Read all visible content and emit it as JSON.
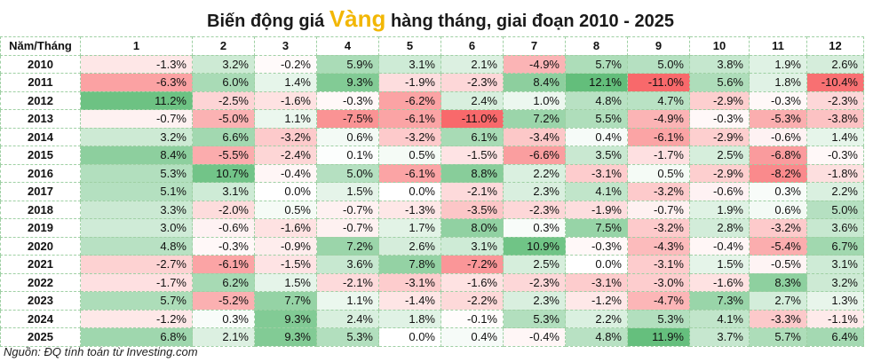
{
  "title": {
    "prefix": "Biến động giá ",
    "highlight": "Vàng",
    "suffix": " hàng tháng, giai đoạn 2010 - 2025"
  },
  "source": "Nguồn: ĐQ tính toán từ Investing.com",
  "colors": {
    "positive": "#63be7b",
    "negative": "#f8696b",
    "neutral": "#ffffff",
    "title_highlight": "#f2b705"
  },
  "chart_data": {
    "type": "heatmap",
    "corner_label": "Năm/Tháng",
    "columns": [
      "1",
      "2",
      "3",
      "4",
      "5",
      "6",
      "7",
      "8",
      "9",
      "10",
      "11",
      "12"
    ],
    "rows": [
      {
        "year": "2010",
        "values": [
          "-1.3%",
          "3.2%",
          "-0.2%",
          "5.9%",
          "3.1%",
          "2.1%",
          "-4.9%",
          "5.7%",
          "5.0%",
          "3.8%",
          "1.9%",
          "2.6%"
        ]
      },
      {
        "year": "2011",
        "values": [
          "-6.3%",
          "6.0%",
          "1.4%",
          "9.3%",
          "-1.9%",
          "-2.3%",
          "8.4%",
          "12.1%",
          "-11.0%",
          "5.6%",
          "1.8%",
          "-10.4%"
        ]
      },
      {
        "year": "2012",
        "values": [
          "11.2%",
          "-2.5%",
          "-1.6%",
          "-0.3%",
          "-6.2%",
          "2.4%",
          "1.0%",
          "4.8%",
          "4.7%",
          "-2.9%",
          "-0.3%",
          "-2.3%"
        ]
      },
      {
        "year": "2013",
        "values": [
          "-0.7%",
          "-5.0%",
          "1.1%",
          "-7.5%",
          "-6.1%",
          "-11.0%",
          "7.2%",
          "5.5%",
          "-4.9%",
          "-0.3%",
          "-5.3%",
          "-3.8%"
        ]
      },
      {
        "year": "2014",
        "values": [
          "3.2%",
          "6.6%",
          "-3.2%",
          "0.6%",
          "-3.2%",
          "6.1%",
          "-3.4%",
          "0.4%",
          "-6.1%",
          "-2.9%",
          "-0.6%",
          "1.4%"
        ]
      },
      {
        "year": "2015",
        "values": [
          "8.4%",
          "-5.5%",
          "-2.4%",
          "0.1%",
          "0.5%",
          "-1.5%",
          "-6.6%",
          "3.5%",
          "-1.7%",
          "2.5%",
          "-6.8%",
          "-0.3%"
        ]
      },
      {
        "year": "2016",
        "values": [
          "5.3%",
          "10.7%",
          "-0.4%",
          "5.0%",
          "-6.1%",
          "8.8%",
          "2.2%",
          "-3.1%",
          "0.5%",
          "-2.9%",
          "-8.2%",
          "-1.8%"
        ]
      },
      {
        "year": "2017",
        "values": [
          "5.1%",
          "3.1%",
          "0.0%",
          "1.5%",
          "0.0%",
          "-2.1%",
          "2.3%",
          "4.1%",
          "-3.2%",
          "-0.6%",
          "0.3%",
          "2.2%"
        ]
      },
      {
        "year": "2018",
        "values": [
          "3.3%",
          "-2.0%",
          "0.5%",
          "-0.7%",
          "-1.3%",
          "-3.5%",
          "-2.3%",
          "-1.9%",
          "-0.7%",
          "1.9%",
          "0.6%",
          "5.0%"
        ]
      },
      {
        "year": "2019",
        "values": [
          "3.0%",
          "-0.6%",
          "-1.6%",
          "-0.7%",
          "1.7%",
          "8.0%",
          "0.3%",
          "7.5%",
          "-3.2%",
          "2.8%",
          "-3.2%",
          "3.6%"
        ]
      },
      {
        "year": "2020",
        "values": [
          "4.8%",
          "-0.3%",
          "-0.9%",
          "7.2%",
          "2.6%",
          "3.1%",
          "10.9%",
          "-0.3%",
          "-4.3%",
          "-0.4%",
          "-5.4%",
          "6.7%"
        ]
      },
      {
        "year": "2021",
        "values": [
          "-2.7%",
          "-6.1%",
          "-1.5%",
          "3.6%",
          "7.8%",
          "-7.2%",
          "2.5%",
          "0.0%",
          "-3.1%",
          "1.5%",
          "-0.5%",
          "3.1%"
        ]
      },
      {
        "year": "2022",
        "values": [
          "-1.7%",
          "6.2%",
          "1.5%",
          "-2.1%",
          "-3.1%",
          "-1.6%",
          "-2.3%",
          "-3.1%",
          "-3.0%",
          "-1.6%",
          "8.3%",
          "3.2%"
        ]
      },
      {
        "year": "2023",
        "values": [
          "5.7%",
          "-5.2%",
          "7.7%",
          "1.1%",
          "-1.4%",
          "-2.2%",
          "2.3%",
          "-1.2%",
          "-4.7%",
          "7.3%",
          "2.7%",
          "1.3%"
        ]
      },
      {
        "year": "2024",
        "values": [
          "-1.2%",
          "0.3%",
          "9.3%",
          "2.4%",
          "1.8%",
          "-0.1%",
          "5.3%",
          "2.2%",
          "5.3%",
          "4.1%",
          "-3.3%",
          "-1.1%"
        ]
      },
      {
        "year": "2025",
        "values": [
          "6.8%",
          "2.1%",
          "9.3%",
          "5.3%",
          "0.0%",
          "0.4%",
          "-0.4%",
          "4.8%",
          "11.9%",
          "3.7%",
          "5.7%",
          "6.4%"
        ]
      }
    ]
  }
}
